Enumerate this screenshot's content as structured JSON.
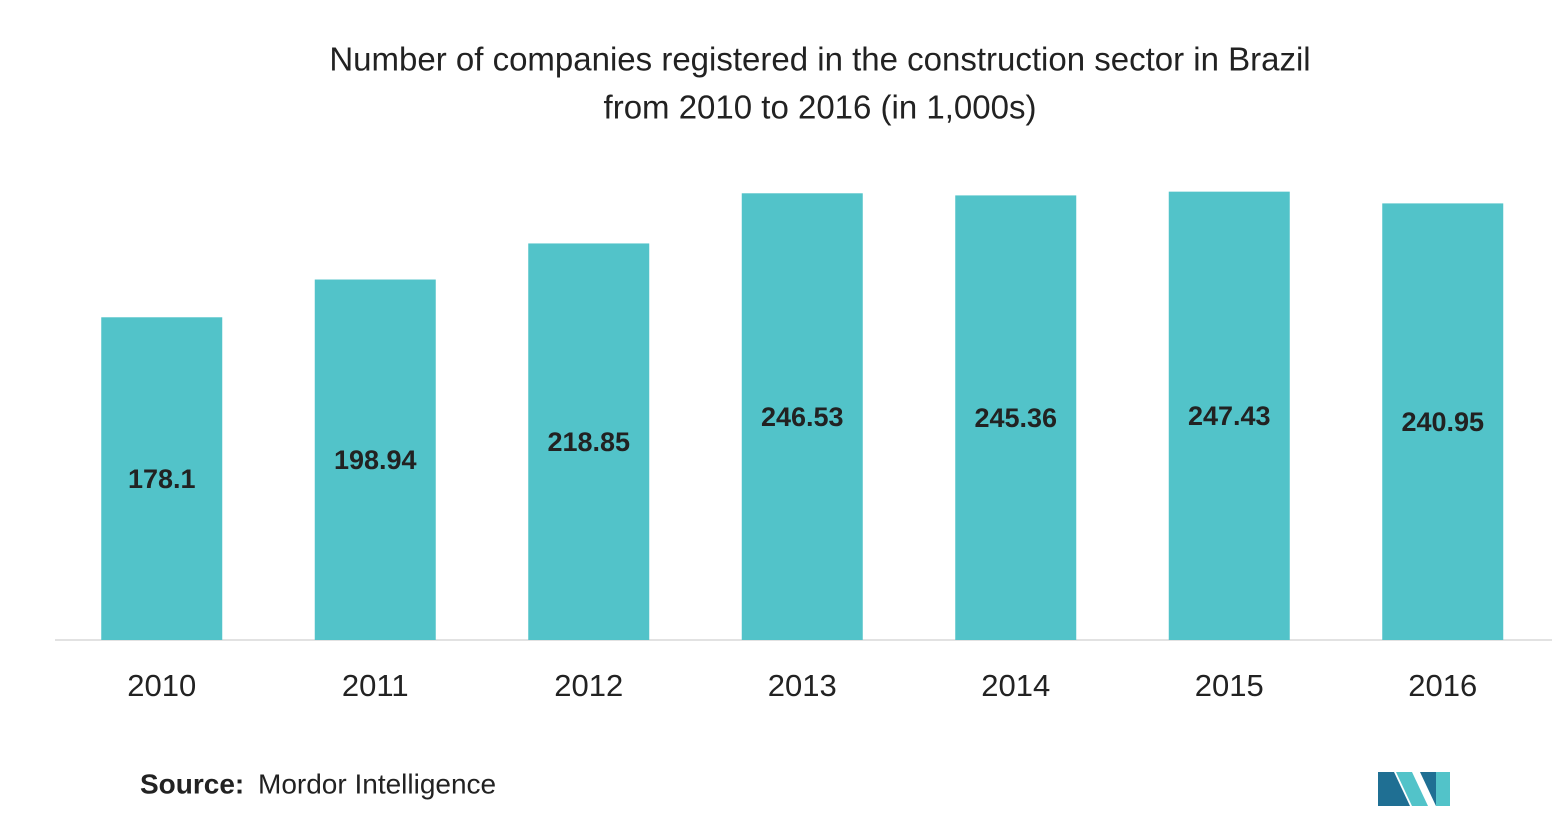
{
  "chart_data": {
    "type": "bar",
    "title": [
      "Number of companies registered in the construction sector in Brazil",
      "from 2010 to 2016 (in 1,000s)"
    ],
    "categories": [
      "2010",
      "2011",
      "2012",
      "2013",
      "2014",
      "2015",
      "2016"
    ],
    "values": [
      178.1,
      198.94,
      218.85,
      246.53,
      245.36,
      247.43,
      240.95
    ],
    "color": "#52c3c9",
    "ylim": [
      0,
      250
    ],
    "source": {
      "label": "Source:",
      "text": "Mordor Intelligence"
    }
  }
}
